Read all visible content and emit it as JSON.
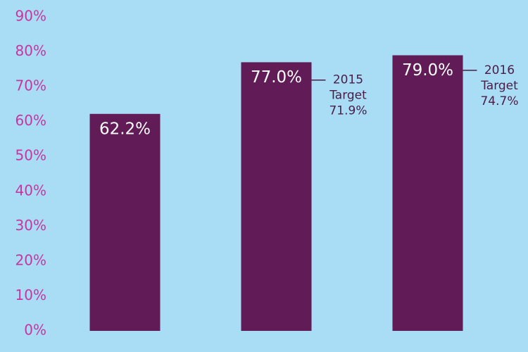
{
  "chart_data": {
    "type": "bar",
    "categories": [
      null,
      null,
      null
    ],
    "values": [
      62.2,
      77.0,
      79.0
    ],
    "value_labels": [
      "62.2%",
      "77.0%",
      "79.0%"
    ],
    "targets": [
      null,
      71.9,
      74.7
    ],
    "target_labels": [
      null,
      [
        "2015",
        "Target",
        "71.9%"
      ],
      [
        "2016",
        "Target",
        "74.7%"
      ]
    ],
    "color": "#611c57",
    "ylim": [
      0,
      90
    ],
    "yticks": [
      {
        "value": 0,
        "label": "0%"
      },
      {
        "value": 10,
        "label": "10%"
      },
      {
        "value": 20,
        "label": "20%"
      },
      {
        "value": 30,
        "label": "30%"
      },
      {
        "value": 40,
        "label": "40%"
      },
      {
        "value": 50,
        "label": "50%"
      },
      {
        "value": 60,
        "label": "60%"
      },
      {
        "value": 70,
        "label": "70%"
      },
      {
        "value": 80,
        "label": "80%"
      },
      {
        "value": 90,
        "label": "90%"
      }
    ],
    "grid": false
  }
}
